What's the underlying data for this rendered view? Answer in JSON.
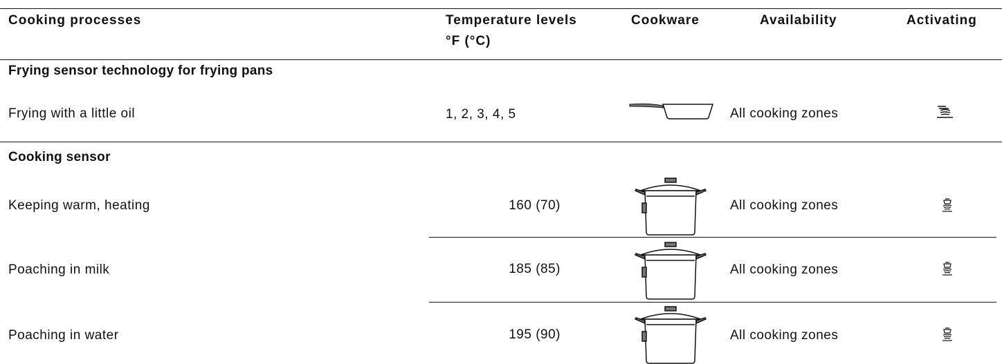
{
  "header": {
    "columns": [
      "Cooking processes",
      "Temperature levels",
      "Cookware",
      "Availability",
      "Activating"
    ],
    "temperature_unit": "°F (°C)"
  },
  "sections": [
    {
      "title": "Frying sensor technology for frying pans",
      "rows": [
        {
          "process": "Frying with a little oil",
          "temperature": "1, 2, 3, 4, 5",
          "availability": "All cooking zones"
        }
      ]
    },
    {
      "title": "Cooking sensor",
      "rows": [
        {
          "process": "Keeping warm, heating",
          "temperature": "160 (70)",
          "availability": "All cooking zones"
        },
        {
          "process": "Poaching in milk",
          "temperature": "185 (85)",
          "availability": "All cooking zones"
        },
        {
          "process": "Poaching in water",
          "temperature": "195 (90)",
          "availability": "All cooking zones"
        }
      ]
    }
  ]
}
